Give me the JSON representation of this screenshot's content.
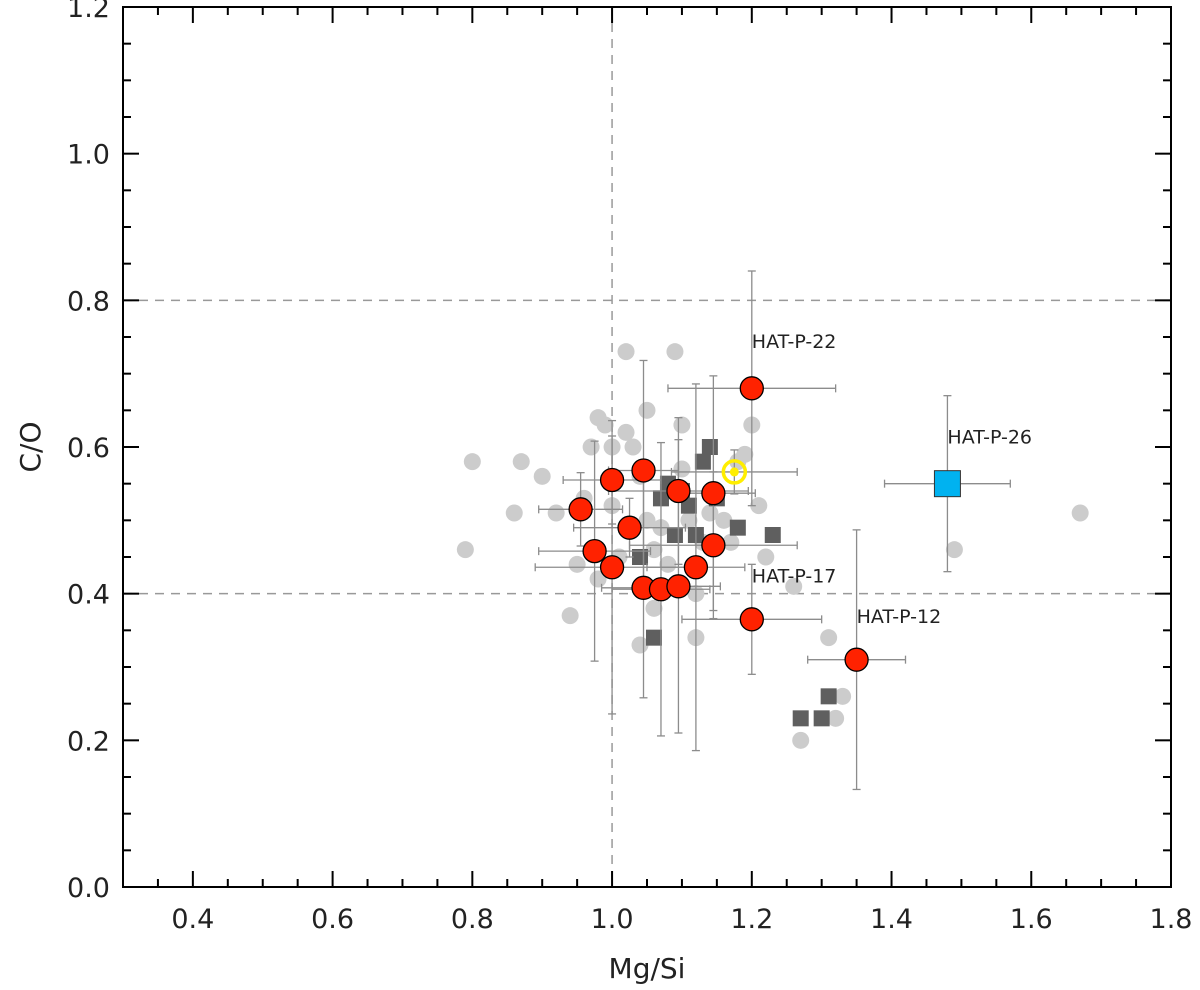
{
  "chart_data": {
    "type": "scatter",
    "xlabel": "Mg/Si",
    "ylabel": "C/O",
    "xlim": [
      0.3,
      1.8
    ],
    "ylim": [
      0.0,
      1.2
    ],
    "x_ticks": [
      "0.4",
      "0.6",
      "0.8",
      "1.0",
      "1.2",
      "1.4",
      "1.6",
      "1.8"
    ],
    "y_ticks": [
      "0.0",
      "0.2",
      "0.4",
      "0.6",
      "0.8",
      "1.0",
      "1.2"
    ],
    "x_tick_values": [
      0.4,
      0.6,
      0.8,
      1.0,
      1.2,
      1.4,
      1.6,
      1.8
    ],
    "y_tick_values": [
      0.0,
      0.2,
      0.4,
      0.6,
      0.8,
      1.0,
      1.2
    ],
    "reference_lines": {
      "vertical_x": [
        1.0
      ],
      "horizontal_y": [
        0.4,
        0.8
      ]
    },
    "colors": {
      "light_points": "#cccccc",
      "dark_squares": "#5f5f5f",
      "red_points": "#ff2200",
      "highlight_square": "#00b2f0",
      "sun_ring": "#ffee00",
      "errorbar": "#8c8c8c",
      "refline": "#999999"
    },
    "series": [
      {
        "marker": "light-circle",
        "points": [
          [
            0.79,
            0.46
          ],
          [
            0.8,
            0.58
          ],
          [
            0.86,
            0.51
          ],
          [
            0.87,
            0.58
          ],
          [
            0.9,
            0.56
          ],
          [
            0.92,
            0.51
          ],
          [
            0.94,
            0.37
          ],
          [
            0.95,
            0.44
          ],
          [
            0.96,
            0.53
          ],
          [
            0.97,
            0.6
          ],
          [
            0.98,
            0.64
          ],
          [
            0.99,
            0.63
          ],
          [
            0.98,
            0.42
          ],
          [
            1.0,
            0.52
          ],
          [
            1.0,
            0.6
          ],
          [
            1.01,
            0.45
          ],
          [
            1.02,
            0.62
          ],
          [
            1.02,
            0.73
          ],
          [
            1.03,
            0.6
          ],
          [
            1.04,
            0.56
          ],
          [
            1.04,
            0.33
          ],
          [
            1.05,
            0.65
          ],
          [
            1.05,
            0.5
          ],
          [
            1.06,
            0.38
          ],
          [
            1.06,
            0.46
          ],
          [
            1.07,
            0.49
          ],
          [
            1.08,
            0.44
          ],
          [
            1.09,
            0.73
          ],
          [
            1.1,
            0.63
          ],
          [
            1.1,
            0.57
          ],
          [
            1.11,
            0.5
          ],
          [
            1.12,
            0.34
          ],
          [
            1.12,
            0.4
          ],
          [
            1.13,
            0.47
          ],
          [
            1.14,
            0.51
          ],
          [
            1.16,
            0.5
          ],
          [
            1.17,
            0.47
          ],
          [
            1.18,
            0.58
          ],
          [
            1.19,
            0.59
          ],
          [
            1.2,
            0.63
          ],
          [
            1.21,
            0.52
          ],
          [
            1.22,
            0.45
          ],
          [
            1.26,
            0.41
          ],
          [
            1.27,
            0.2
          ],
          [
            1.31,
            0.34
          ],
          [
            1.32,
            0.23
          ],
          [
            1.33,
            0.26
          ],
          [
            1.49,
            0.46
          ],
          [
            1.67,
            0.51
          ]
        ]
      },
      {
        "marker": "dark-square",
        "points": [
          [
            1.04,
            0.45
          ],
          [
            1.06,
            0.34
          ],
          [
            1.07,
            0.53
          ],
          [
            1.08,
            0.55
          ],
          [
            1.09,
            0.48
          ],
          [
            1.1,
            0.54
          ],
          [
            1.11,
            0.52
          ],
          [
            1.12,
            0.48
          ],
          [
            1.13,
            0.58
          ],
          [
            1.14,
            0.6
          ],
          [
            1.15,
            0.53
          ],
          [
            1.18,
            0.49
          ],
          [
            1.23,
            0.48
          ],
          [
            1.27,
            0.23
          ],
          [
            1.3,
            0.23
          ],
          [
            1.31,
            0.26
          ]
        ]
      },
      {
        "marker": "red-circle",
        "points": [
          {
            "x": 0.955,
            "y": 0.515,
            "xerr": 0.06,
            "yerr": 0.05
          },
          {
            "x": 0.975,
            "y": 0.458,
            "xerr": 0.08,
            "yerr": 0.15
          },
          {
            "x": 1.0,
            "y": 0.555,
            "xerr": 0.07,
            "yerr": 0.06
          },
          {
            "x": 1.0,
            "y": 0.436,
            "xerr": 0.11,
            "yerr": 0.2
          },
          {
            "x": 1.025,
            "y": 0.49,
            "xerr": 0.08,
            "yerr": 0.04
          },
          {
            "x": 1.045,
            "y": 0.568,
            "xerr": 0.05,
            "yerr": 0.15
          },
          {
            "x": 1.045,
            "y": 0.408,
            "xerr": 0.06,
            "yerr": 0.15
          },
          {
            "x": 1.07,
            "y": 0.406,
            "xerr": 0.07,
            "yerr": 0.2
          },
          {
            "x": 1.095,
            "y": 0.54,
            "xerr": 0.1,
            "yerr": 0.1
          },
          {
            "x": 1.095,
            "y": 0.41,
            "xerr": 0.06,
            "yerr": 0.2
          },
          {
            "x": 1.12,
            "y": 0.436,
            "xerr": 0.07,
            "yerr": 0.25
          },
          {
            "x": 1.145,
            "y": 0.537,
            "xerr": 0.06,
            "yerr": 0.16
          },
          {
            "x": 1.145,
            "y": 0.466,
            "xerr": 0.12,
            "yerr": 0.1
          },
          {
            "x": 1.2,
            "y": 0.68,
            "xerr": 0.12,
            "yerr": 0.16
          },
          {
            "x": 1.2,
            "y": 0.365,
            "xerr": 0.1,
            "yerr": 0.075
          },
          {
            "x": 1.35,
            "y": 0.31,
            "xerr": 0.07,
            "yerr": 0.177
          }
        ]
      },
      {
        "marker": "blue-square",
        "points": [
          {
            "x": 1.48,
            "y": 0.55,
            "xerr": 0.09,
            "yerr": 0.12
          }
        ]
      },
      {
        "marker": "sun-symbol",
        "points": [
          {
            "x": 1.175,
            "y": 0.566,
            "xerr": 0.09,
            "yerr": 0.03
          }
        ]
      }
    ],
    "annotations": [
      {
        "text": "HAT-P-22",
        "x": 1.2,
        "y": 0.735
      },
      {
        "text": "HAT-P-26",
        "x": 1.48,
        "y": 0.605
      },
      {
        "text": "HAT-P-17",
        "x": 1.2,
        "y": 0.415
      },
      {
        "text": "HAT-P-12",
        "x": 1.35,
        "y": 0.36
      }
    ]
  }
}
